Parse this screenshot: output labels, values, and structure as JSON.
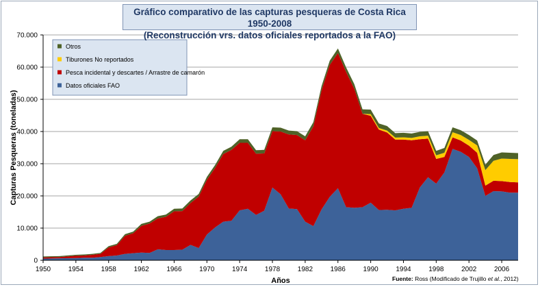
{
  "title_line1": "Gráfico comparativo de las capturas pesqueras de Costa Rica 1950-2008",
  "title_line2": "(Reconstrucción vrs. datos oficiales reportados a la FAO)",
  "source_label": "Fuente:",
  "source_pre": " Ross (Modificado de Trujillo ",
  "source_em": "et al.",
  "source_post": ", 2012)",
  "chart_data": {
    "type": "area",
    "stacked": true,
    "xlabel": "Años",
    "ylabel": "Capturas Pesqueras (toneladas)",
    "ylim": [
      0,
      70000
    ],
    "xlim": [
      1950,
      2008
    ],
    "yticks": [
      0,
      10000,
      20000,
      30000,
      40000,
      50000,
      60000,
      70000
    ],
    "ytick_labels": [
      "0",
      "10.000",
      "20.000",
      "30.000",
      "40.000",
      "50.000",
      "60.000",
      "70.000"
    ],
    "xticks": [
      1950,
      1954,
      1958,
      1962,
      1966,
      1970,
      1974,
      1978,
      1982,
      1986,
      1990,
      1994,
      1998,
      2002,
      2006
    ],
    "grid": true,
    "legend_position": "top-left",
    "legend_order": [
      "Otros",
      "Tiburones No reportados",
      "Pesca incidental y descartes / Arrastre de camarón",
      "Datos oficiales FAO"
    ],
    "x": [
      1950,
      1952,
      1954,
      1955,
      1956,
      1957,
      1958,
      1959,
      1960,
      1961,
      1962,
      1963,
      1964,
      1965,
      1966,
      1967,
      1968,
      1969,
      1970,
      1971,
      1972,
      1973,
      1974,
      1975,
      1976,
      1977,
      1978,
      1979,
      1980,
      1981,
      1982,
      1983,
      1984,
      1985,
      1986,
      1987,
      1988,
      1989,
      1990,
      1991,
      1992,
      1993,
      1994,
      1995,
      1996,
      1997,
      1998,
      1999,
      2000,
      2001,
      2002,
      2003,
      2004,
      2005,
      2006,
      2007,
      2008
    ],
    "series": [
      {
        "name": "Datos oficiales FAO",
        "color": "#3d6299",
        "values": [
          500,
          600,
          700,
          800,
          800,
          1000,
          1300,
          1500,
          2000,
          2200,
          2400,
          2300,
          3400,
          3200,
          3200,
          3300,
          4800,
          3800,
          8000,
          10200,
          12000,
          12300,
          15500,
          16000,
          14100,
          15400,
          22600,
          20500,
          16100,
          15900,
          12000,
          10600,
          15800,
          19700,
          22400,
          16500,
          16300,
          16500,
          17900,
          15600,
          15700,
          15500,
          16000,
          16300,
          22600,
          25800,
          23800,
          27300,
          34600,
          33700,
          32100,
          28600,
          20000,
          21500,
          21400,
          21000,
          21000
        ]
      },
      {
        "name": "Pesca incidental y descartes / Arrastre de camarón",
        "color": "#c00000",
        "values": [
          400,
          400,
          700,
          700,
          900,
          1000,
          2700,
          3200,
          5600,
          6200,
          8300,
          9100,
          9600,
          10300,
          12000,
          12000,
          13000,
          16000,
          17000,
          18500,
          21000,
          22000,
          21000,
          20500,
          19000,
          17800,
          17500,
          19500,
          23000,
          23000,
          25300,
          31000,
          37000,
          41000,
          42000,
          42000,
          37000,
          29000,
          27000,
          25000,
          24000,
          22000,
          21500,
          21000,
          15000,
          12000,
          7700,
          4800,
          3600,
          3500,
          3500,
          4800,
          3200,
          3200,
          3200,
          3300,
          3200
        ]
      },
      {
        "name": "Tiburones No reportados",
        "color": "#ffcc00",
        "values": [
          0,
          0,
          0,
          0,
          0,
          0,
          0,
          0,
          0,
          0,
          0,
          0,
          0,
          0,
          0,
          0,
          0,
          0,
          0,
          0,
          0,
          0,
          0,
          0,
          0,
          0,
          0,
          0,
          0,
          0,
          0,
          0,
          0,
          0,
          0,
          0,
          0,
          0,
          500,
          500,
          600,
          600,
          700,
          700,
          900,
          900,
          1100,
          1300,
          1600,
          1700,
          1800,
          2300,
          4800,
          6200,
          7000,
          7200,
          7200
        ]
      },
      {
        "name": "Otros",
        "color": "#4f6228",
        "values": [
          300,
          300,
          300,
          300,
          300,
          300,
          400,
          400,
          500,
          500,
          600,
          600,
          700,
          700,
          800,
          800,
          800,
          800,
          900,
          900,
          1000,
          1000,
          1100,
          1100,
          1100,
          1100,
          1200,
          1200,
          1200,
          1200,
          1200,
          1300,
          1300,
          1300,
          1400,
          1400,
          1400,
          1400,
          1400,
          1400,
          1400,
          1400,
          1400,
          1400,
          1400,
          1400,
          1400,
          1500,
          1500,
          1500,
          1500,
          1500,
          1700,
          1800,
          1900,
          1900,
          1900
        ]
      }
    ]
  }
}
